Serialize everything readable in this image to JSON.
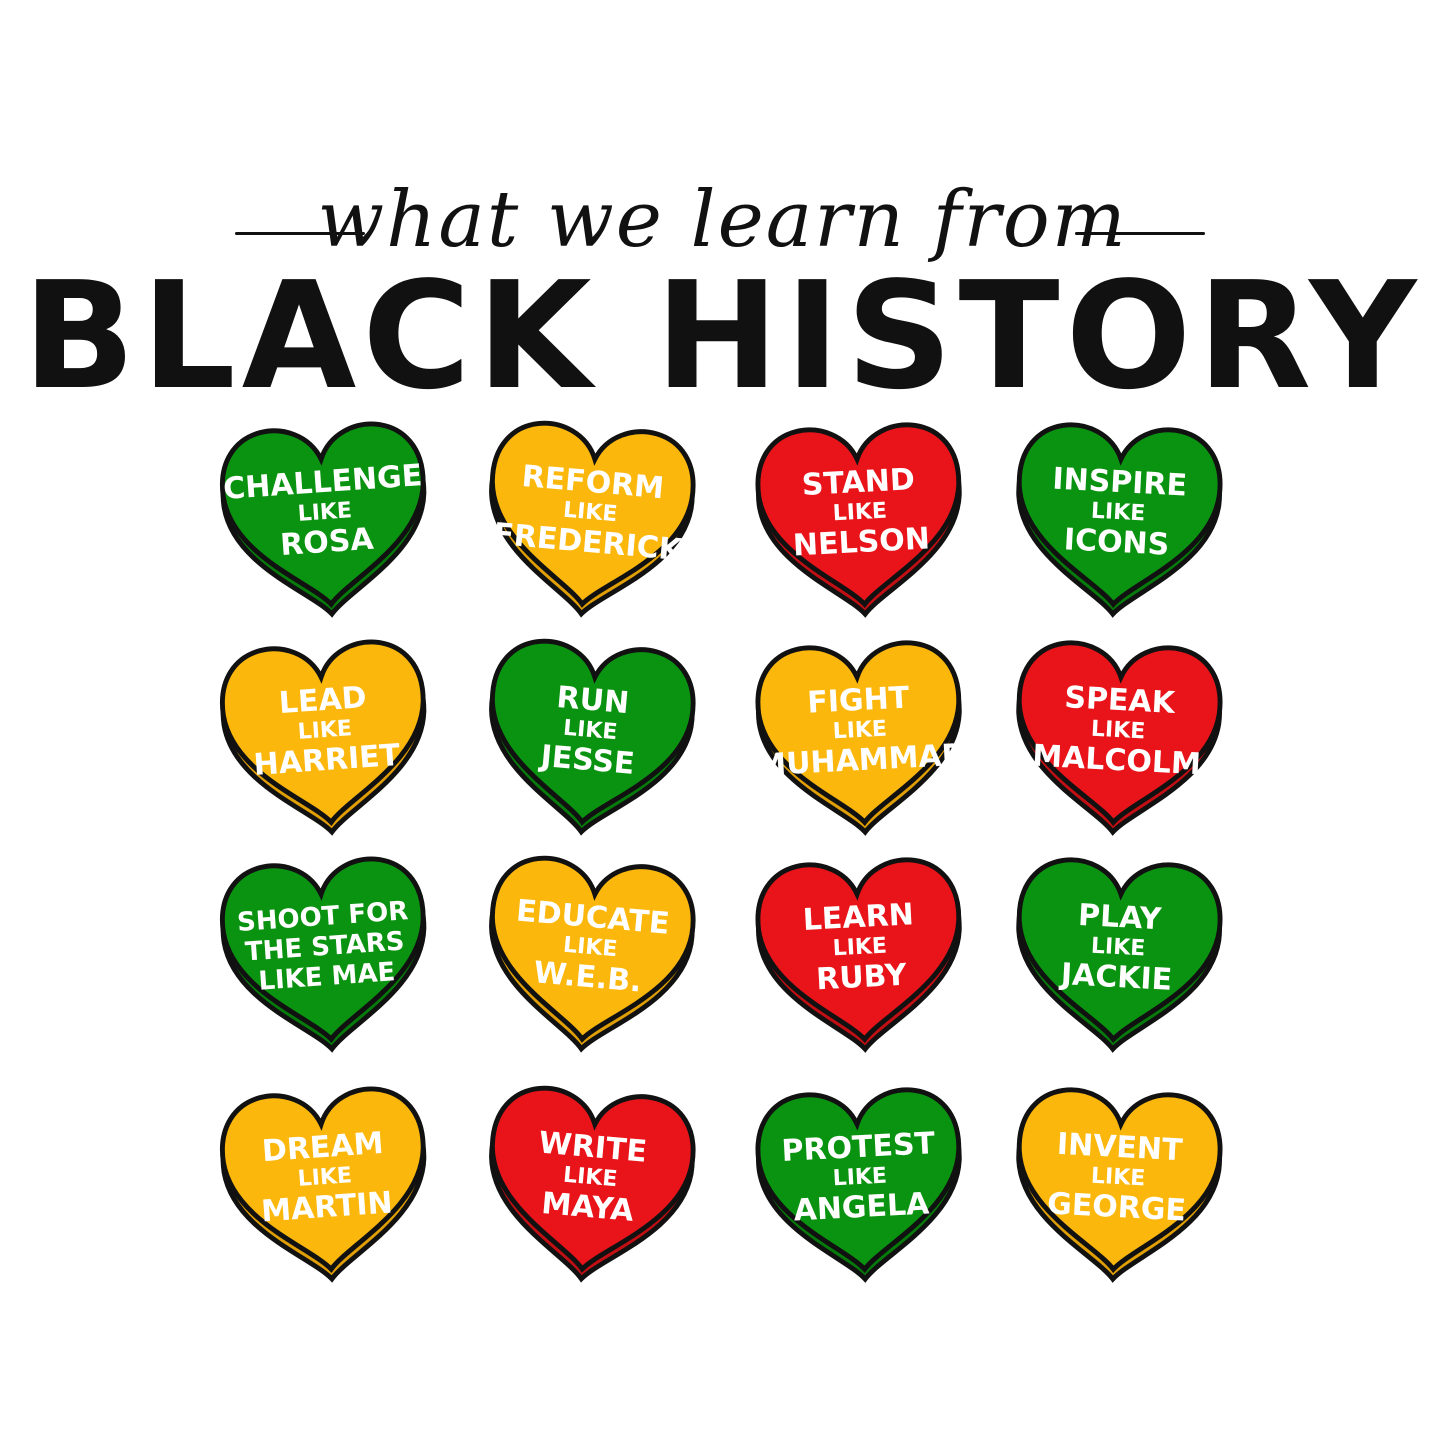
{
  "title": {
    "script": "what we learn from",
    "main": "BLACK HISTORY"
  },
  "colors": {
    "green": "#0A9310",
    "yellow": "#FCB70D",
    "red": "#E8141A",
    "outline": "#111111"
  },
  "hearts": [
    {
      "color": "green",
      "lines": [
        "CHALLENGE",
        "LIKE",
        "ROSA"
      ]
    },
    {
      "color": "yellow",
      "lines": [
        "REFORM",
        "LIKE",
        "FREDERICK"
      ]
    },
    {
      "color": "red",
      "lines": [
        "STAND",
        "LIKE",
        "NELSON"
      ]
    },
    {
      "color": "green",
      "lines": [
        "INSPIRE",
        "LIKE",
        "ICONS"
      ]
    },
    {
      "color": "yellow",
      "lines": [
        "LEAD",
        "LIKE",
        "HARRIET"
      ]
    },
    {
      "color": "green",
      "lines": [
        "RUN",
        "LIKE",
        "JESSE"
      ]
    },
    {
      "color": "yellow",
      "lines": [
        "FIGHT",
        "LIKE",
        "MUHAMMAD"
      ]
    },
    {
      "color": "red",
      "lines": [
        "SPEAK",
        "LIKE",
        "MALCOLM"
      ]
    },
    {
      "color": "green",
      "lines": [
        "SHOOT FOR",
        "THE STARS",
        "LIKE MAE"
      ]
    },
    {
      "color": "yellow",
      "lines": [
        "EDUCATE",
        "LIKE",
        "W.E.B."
      ]
    },
    {
      "color": "red",
      "lines": [
        "LEARN",
        "LIKE",
        "RUBY"
      ]
    },
    {
      "color": "green",
      "lines": [
        "PLAY",
        "LIKE",
        "JACKIE"
      ]
    },
    {
      "color": "yellow",
      "lines": [
        "DREAM",
        "LIKE",
        "MARTIN"
      ]
    },
    {
      "color": "red",
      "lines": [
        "WRITE",
        "LIKE",
        "MAYA"
      ]
    },
    {
      "color": "green",
      "lines": [
        "PROTEST",
        "LIKE",
        "ANGELA"
      ]
    },
    {
      "color": "yellow",
      "lines": [
        "INVENT",
        "LIKE",
        "GEORGE"
      ]
    }
  ]
}
